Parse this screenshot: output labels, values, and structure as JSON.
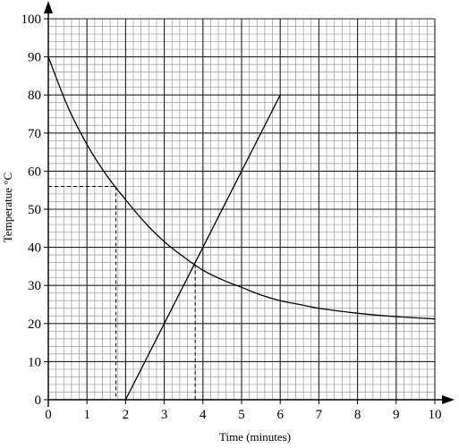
{
  "chart_data": {
    "type": "line",
    "title": "",
    "xlabel": "Time (minutes)",
    "ylabel": "Temperatue °C",
    "xlim": [
      0,
      10
    ],
    "ylim": [
      0,
      100
    ],
    "x_ticks": [
      0,
      1,
      2,
      3,
      4,
      5,
      6,
      7,
      8,
      9,
      10
    ],
    "y_ticks": [
      0,
      10,
      20,
      30,
      40,
      50,
      60,
      70,
      80,
      90,
      100
    ],
    "grid": {
      "major_step_x": 1,
      "minor_step_x": 0.2,
      "major_step_y": 10,
      "minor_step_y": 2
    },
    "series": [
      {
        "kind": "curve",
        "color": "#000000",
        "points": [
          [
            0,
            90
          ],
          [
            0.5,
            77
          ],
          [
            1,
            67
          ],
          [
            1.5,
            59
          ],
          [
            2,
            52.5
          ],
          [
            2.5,
            46.5
          ],
          [
            3,
            41.5
          ],
          [
            3.5,
            37.5
          ],
          [
            4,
            34
          ],
          [
            4.5,
            31.5
          ],
          [
            5,
            29.5
          ],
          [
            5.5,
            27.5
          ],
          [
            6,
            26
          ],
          [
            6.5,
            25
          ],
          [
            7,
            24
          ],
          [
            7.5,
            23.3
          ],
          [
            8,
            22.7
          ],
          [
            8.5,
            22.2
          ],
          [
            9,
            21.8
          ],
          [
            9.5,
            21.5
          ],
          [
            10,
            21.2
          ]
        ]
      },
      {
        "kind": "straight",
        "color": "#000000",
        "points": [
          [
            2,
            0
          ],
          [
            6,
            80
          ]
        ]
      }
    ],
    "dashed_guides": [
      {
        "x": 1.75,
        "y": 56
      },
      {
        "x": 3.8,
        "y": 35.5
      }
    ]
  }
}
